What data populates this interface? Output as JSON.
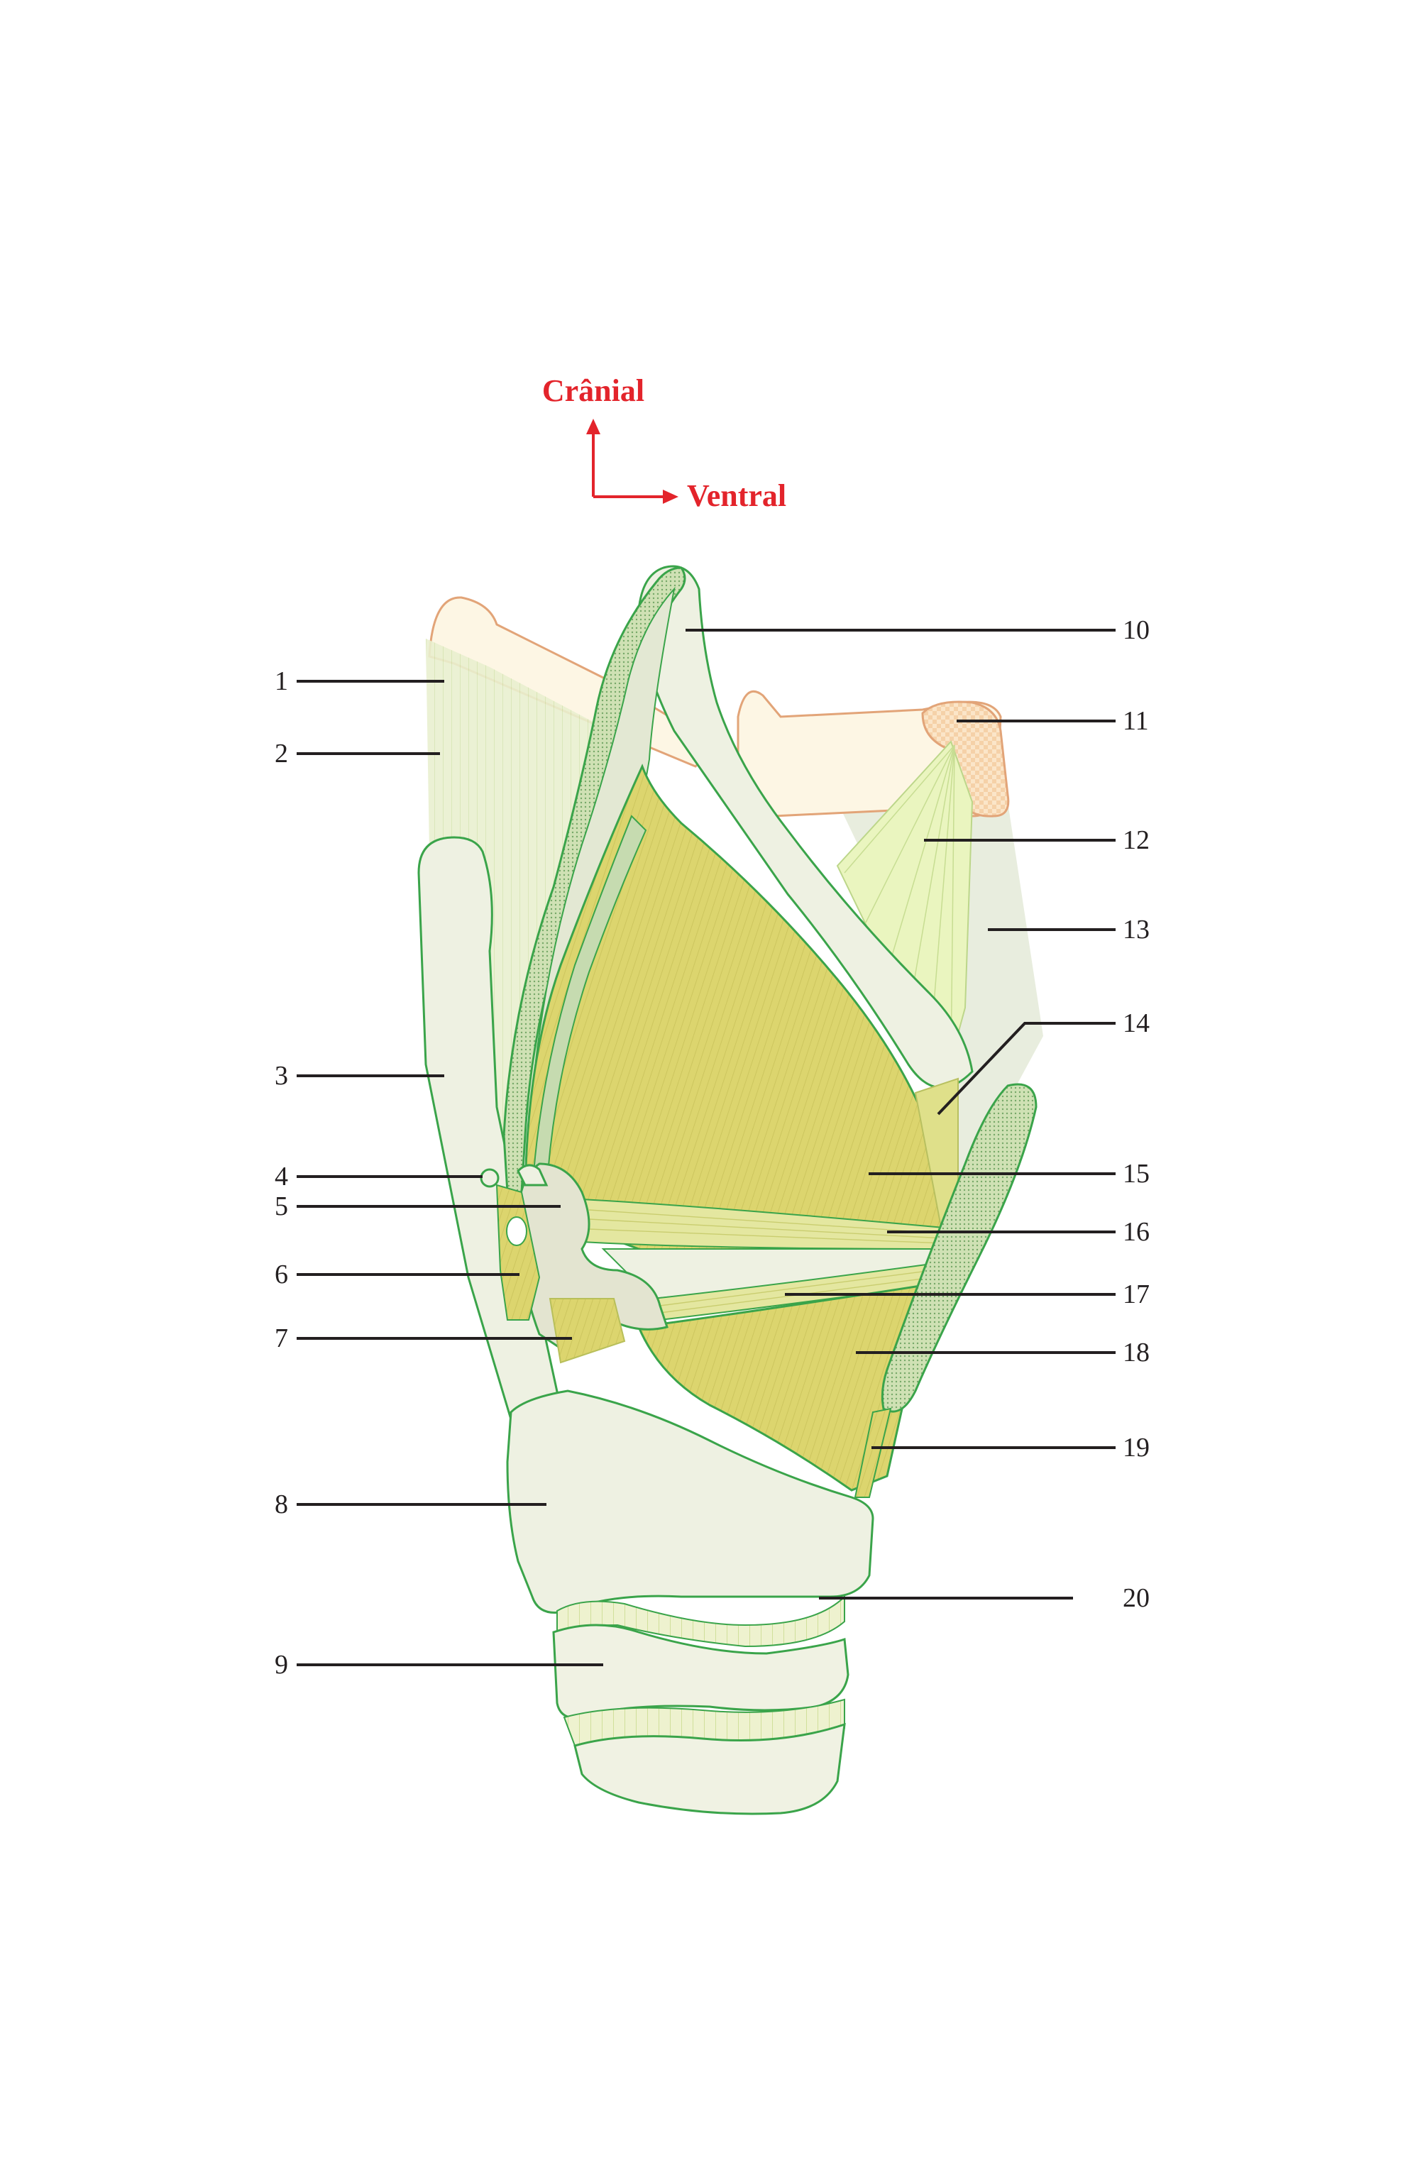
{
  "orientation": {
    "up_label": "Crânial",
    "right_label": "Ventral",
    "arrow_color": "#e3242b"
  },
  "labels": {
    "l1": "1",
    "l2": "2",
    "l3": "3",
    "l4": "4",
    "l5": "5",
    "l6": "6",
    "l7": "7",
    "l8": "8",
    "l9": "9",
    "l10": "10",
    "l11": "11",
    "l12": "12",
    "l13": "13",
    "l14": "14",
    "l15": "15",
    "l16": "16",
    "l17": "17",
    "l18": "18",
    "l19": "19",
    "l20": "20"
  },
  "colors": {
    "outline": "#3aa44a",
    "cartilage": "#edf1e1",
    "bone": "#fcf6e6",
    "bone_outline": "#e6a574",
    "muscle": "#d9d46a",
    "ligament": "#e8f2bc",
    "membrane": "#e4ead6"
  }
}
